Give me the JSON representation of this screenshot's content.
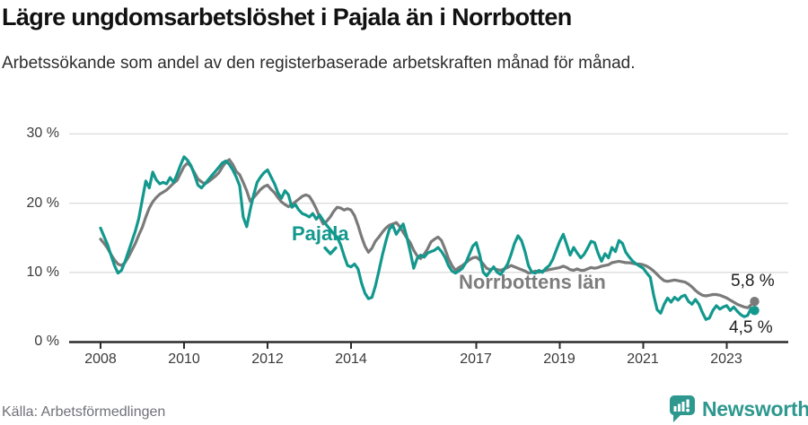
{
  "header": {
    "title": "Lägre ungdomsarbetslöshet i Pajala än i Norrbotten",
    "subtitle": "Arbetssökande som andel av den registerbaserade arbetskraften månad för månad."
  },
  "footer": {
    "source": "Källa: Arbetsförmedlingen",
    "brand": "Newsworthy"
  },
  "chart_data": {
    "type": "line",
    "title": "Lägre ungdomsarbetslöshet i Pajala än i Norrbotten",
    "subtitle": "Arbetssökande som andel av den registerbaserade arbetskraften månad för månad.",
    "x_start": "2008-01",
    "x_end": "2023-09",
    "x_unit": "month",
    "ylim": [
      0,
      30
    ],
    "grid": "horizontal",
    "legend_position": "inline-labels",
    "y_axis": {
      "ticks": [
        "30 %",
        "20 %",
        "10 %",
        "0 %"
      ]
    },
    "x_axis": {
      "ticks": [
        "2008",
        "2010",
        "2012",
        "2014",
        "2017",
        "2019",
        "2021",
        "2023"
      ]
    },
    "series": [
      {
        "name": "Pajala",
        "slug": "pajala",
        "color": "#12988d",
        "end_label": "4,5 %",
        "values": [
          16.4,
          15.2,
          14.0,
          12.5,
          11.0,
          9.9,
          10.3,
          11.5,
          13.0,
          14.5,
          16.0,
          17.8,
          20.5,
          23.2,
          22.2,
          24.5,
          23.4,
          22.8,
          23.0,
          22.8,
          23.7,
          23.0,
          24.2,
          25.5,
          26.7,
          26.2,
          25.4,
          24.1,
          22.6,
          22.2,
          22.8,
          23.4,
          24.0,
          24.6,
          25.2,
          25.8,
          26.1,
          25.6,
          24.8,
          23.8,
          22.5,
          18.0,
          16.6,
          19.0,
          21.2,
          23.0,
          23.8,
          24.4,
          24.8,
          23.8,
          22.8,
          21.5,
          20.7,
          21.8,
          21.2,
          19.4,
          19.8,
          19.0,
          18.5,
          18.3,
          18.0,
          18.5,
          17.7,
          18.3,
          17.5,
          16.8,
          16.2,
          15.6,
          15.1,
          14.0,
          12.4,
          11.0,
          10.8,
          11.2,
          10.5,
          8.5,
          7.0,
          6.2,
          6.4,
          8.0,
          10.2,
          12.5,
          14.5,
          16.2,
          16.8,
          15.5,
          16.3,
          17.0,
          15.2,
          13.0,
          10.6,
          12.0,
          12.5,
          12.2,
          12.8,
          13.0,
          13.2,
          13.6,
          13.0,
          12.2,
          11.0,
          10.2,
          9.9,
          10.2,
          10.6,
          11.4,
          12.6,
          13.8,
          14.3,
          12.5,
          10.0,
          9.5,
          10.2,
          10.8,
          10.0,
          9.7,
          10.4,
          11.2,
          12.6,
          14.2,
          15.3,
          14.6,
          13.0,
          11.0,
          10.0,
          9.9,
          10.3,
          10.0,
          10.6,
          11.0,
          11.9,
          13.2,
          14.5,
          15.5,
          14.0,
          12.5,
          13.6,
          12.8,
          12.1,
          12.6,
          13.5,
          14.5,
          14.3,
          12.8,
          11.6,
          12.7,
          12.1,
          13.6,
          13.0,
          14.6,
          14.2,
          12.9,
          12.2,
          11.6,
          11.2,
          10.9,
          10.6,
          9.9,
          9.3,
          6.7,
          4.6,
          4.1,
          5.4,
          6.3,
          5.7,
          6.4,
          6.0,
          6.5,
          6.7,
          5.8,
          5.4,
          6.1,
          5.4,
          4.2,
          3.2,
          3.4,
          4.5,
          5.2,
          4.7,
          5.0,
          5.2,
          4.5,
          5.0,
          4.4,
          3.9,
          3.6,
          3.8,
          4.8,
          4.5
        ]
      },
      {
        "name": "Norrbottens län",
        "slug": "norrbotten",
        "color": "#7a7a7a",
        "end_label": "5,8 %",
        "values": [
          14.8,
          14.2,
          13.5,
          12.6,
          11.8,
          11.2,
          11.0,
          11.4,
          12.2,
          13.2,
          14.2,
          15.4,
          16.5,
          18.0,
          19.3,
          20.2,
          20.8,
          21.3,
          21.6,
          21.9,
          22.4,
          22.9,
          23.3,
          24.3,
          25.3,
          25.8,
          25.3,
          24.4,
          23.5,
          23.1,
          22.8,
          23.1,
          23.5,
          23.9,
          24.4,
          25.2,
          25.9,
          26.3,
          25.6,
          24.6,
          24.1,
          23.0,
          21.8,
          20.3,
          20.8,
          21.4,
          22.0,
          22.4,
          22.6,
          22.0,
          21.5,
          20.8,
          20.2,
          19.8,
          19.5,
          19.8,
          20.2,
          20.6,
          21.0,
          21.2,
          21.0,
          20.2,
          19.2,
          18.0,
          17.0,
          17.4,
          18.0,
          18.8,
          19.4,
          19.3,
          19.0,
          19.2,
          19.0,
          18.2,
          16.8,
          15.2,
          13.8,
          12.9,
          13.5,
          14.5,
          15.1,
          15.8,
          16.4,
          16.8,
          17.0,
          17.2,
          16.6,
          15.8,
          15.0,
          14.3,
          13.2,
          12.4,
          12.0,
          12.6,
          13.4,
          14.4,
          14.8,
          15.1,
          14.6,
          13.4,
          12.0,
          11.0,
          10.3,
          10.7,
          11.0,
          11.4,
          11.8,
          12.1,
          12.2,
          11.8,
          11.2,
          10.6,
          10.4,
          10.6,
          10.4,
          10.3,
          10.5,
          10.7,
          11.0,
          10.8,
          10.6,
          10.4,
          10.2,
          9.9,
          10.0,
          10.2,
          10.0,
          10.2,
          10.3,
          10.4,
          10.5,
          10.6,
          10.7,
          10.9,
          10.7,
          10.4,
          10.3,
          10.5,
          10.3,
          10.3,
          10.5,
          10.7,
          10.6,
          10.7,
          10.9,
          11.0,
          11.1,
          11.4,
          11.5,
          11.6,
          11.5,
          11.4,
          11.4,
          11.3,
          11.2,
          11.2,
          11.1,
          10.9,
          10.6,
          10.2,
          9.7,
          9.2,
          8.8,
          8.7,
          8.8,
          8.9,
          8.8,
          8.7,
          8.6,
          8.3,
          7.9,
          7.4,
          7.0,
          6.7,
          6.6,
          6.7,
          6.8,
          6.8,
          6.7,
          6.5,
          6.3,
          6.0,
          5.7,
          5.4,
          5.2,
          5.0,
          4.9,
          5.3,
          5.8
        ]
      }
    ]
  }
}
